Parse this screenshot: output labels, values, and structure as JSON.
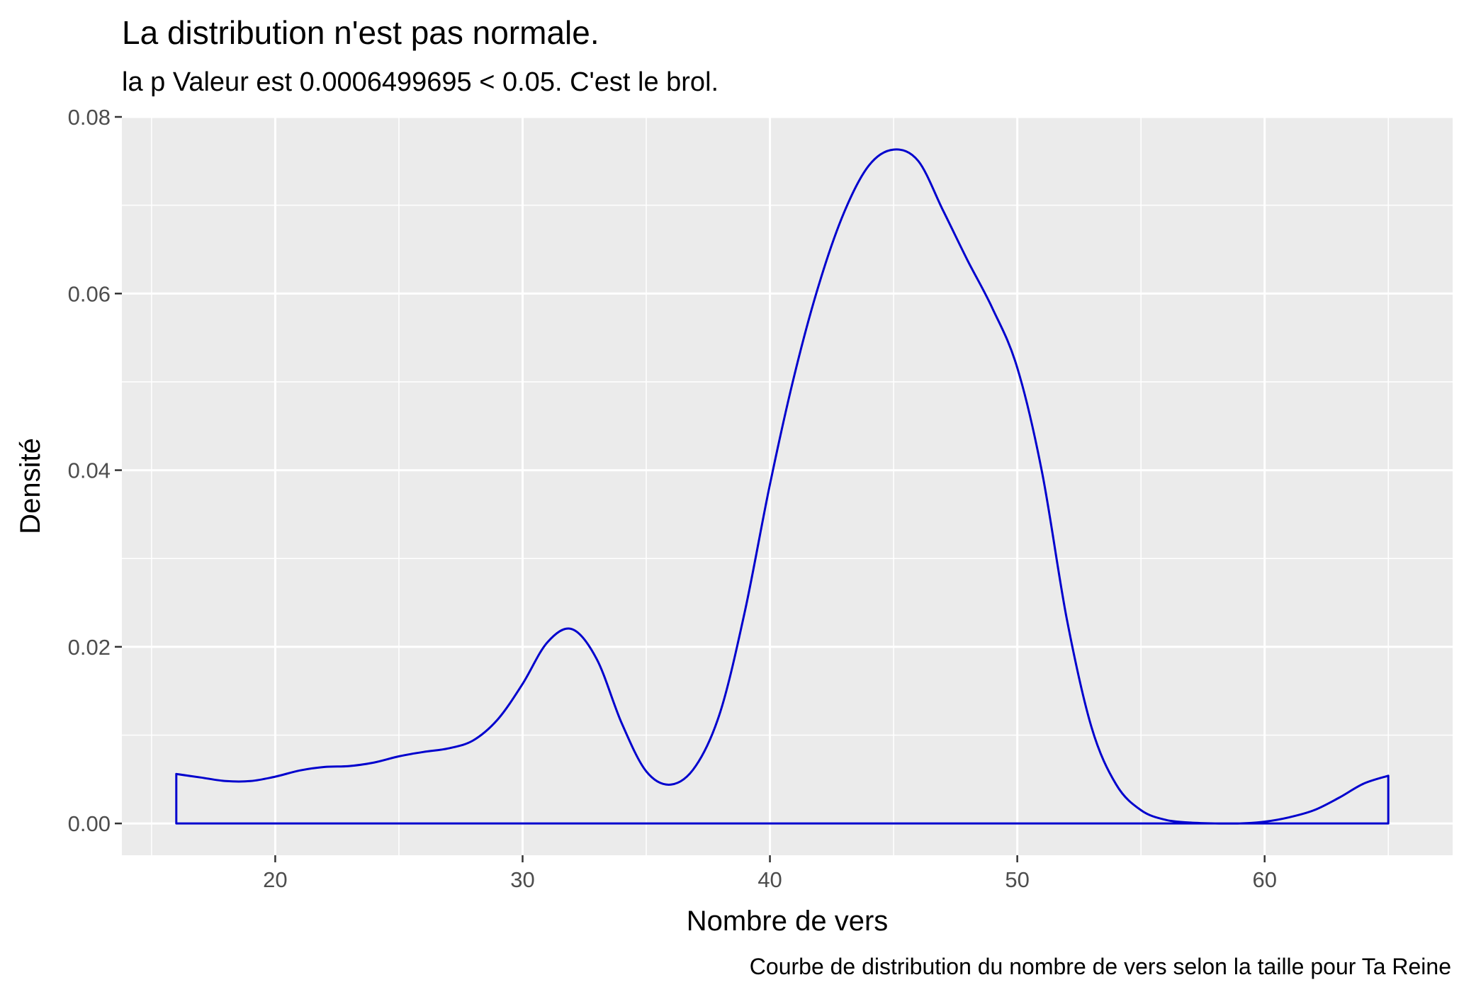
{
  "chart_data": {
    "type": "area",
    "title": "La distribution n'est pas normale.",
    "subtitle": "la p Valeur est  0.0006499695  < 0.05. C'est le brol.",
    "caption": "Courbe de distribution du nombre de vers selon la taille pour  Ta Reine",
    "xlabel": "Nombre de vers",
    "ylabel": "Densité",
    "xlim": [
      13.8,
      67.6
    ],
    "ylim": [
      -0.0036,
      0.08
    ],
    "x_ticks": [
      20,
      30,
      40,
      50,
      60
    ],
    "x_tick_labels": [
      "20",
      "30",
      "40",
      "50",
      "60"
    ],
    "y_ticks": [
      0.0,
      0.02,
      0.04,
      0.06,
      0.08
    ],
    "y_tick_labels": [
      "0.00",
      "0.02",
      "0.04",
      "0.06",
      "0.08"
    ],
    "grid": true,
    "line_color": "#0000CD",
    "panel_color": "#EBEBEB",
    "grid_color": "#FFFFFF",
    "series": [
      {
        "x": [
          16,
          17,
          18,
          19,
          20,
          21,
          22,
          23,
          24,
          25,
          26,
          27,
          28,
          29,
          30,
          31,
          32,
          33,
          34,
          35,
          36,
          37,
          38,
          39,
          40,
          41,
          42,
          43,
          44,
          45,
          46,
          47,
          48,
          49,
          50,
          51,
          52,
          53,
          54,
          55,
          56,
          57,
          58,
          59,
          60,
          61,
          62,
          63,
          64,
          65
        ],
        "y": [
          0.0056,
          0.0052,
          0.0048,
          0.0048,
          0.0053,
          0.006,
          0.0064,
          0.0065,
          0.0069,
          0.0076,
          0.0081,
          0.0085,
          0.0094,
          0.0118,
          0.0158,
          0.0205,
          0.022,
          0.0186,
          0.0114,
          0.0059,
          0.0044,
          0.0065,
          0.0127,
          0.0242,
          0.0384,
          0.0509,
          0.0612,
          0.0692,
          0.0745,
          0.0763,
          0.075,
          0.0694,
          0.0637,
          0.0583,
          0.0516,
          0.0398,
          0.0232,
          0.0109,
          0.0044,
          0.0015,
          0.0004,
          0.0001,
          0.0,
          0.0,
          0.0002,
          0.0007,
          0.0015,
          0.0029,
          0.0045,
          0.0054
        ]
      }
    ]
  }
}
